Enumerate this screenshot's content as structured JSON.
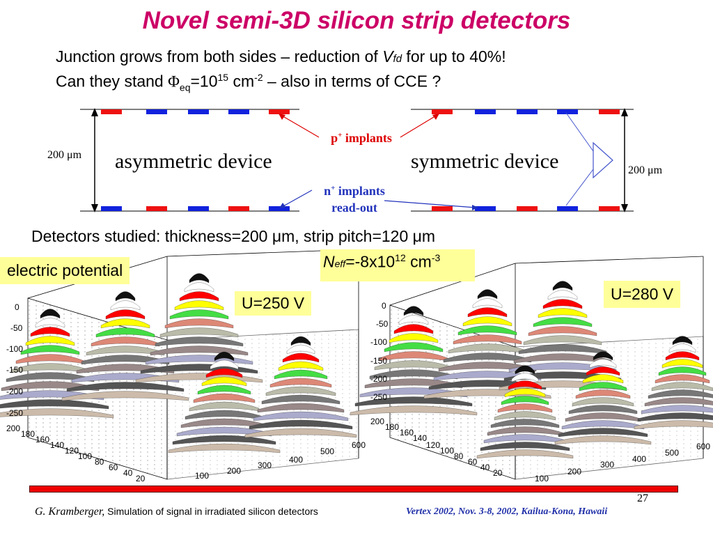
{
  "slide": {
    "title": "Novel semi-3D silicon strip detectors",
    "line1": {
      "text_a": "Junction grows from both sides – reduction of ",
      "v": "V",
      "v_sub": "fd",
      "text_b": " for up to 40%!"
    },
    "line2": {
      "text_a": "Can they stand ",
      "phi": "Φ",
      "phi_sub": "eq",
      "eq": "=10",
      "exp": "15",
      "unit": " cm",
      "unit_exp": "-2",
      "text_b": " – also in terms of CCE ?"
    },
    "detectors_line": "Detectors studied: thickness=200 μm, strip pitch=120 μm",
    "page_number": "27"
  },
  "schematic": {
    "thickness_left": "200 μm",
    "thickness_right": "200 μm",
    "asymmetric_label": "asymmetric device",
    "symmetric_label": "symmetric device",
    "p_implants": {
      "sup": "+",
      "letter": "p",
      "text": " implants",
      "color": "#dd0000"
    },
    "n_implants": {
      "sup": "+",
      "letter": "n",
      "text": " implants",
      "text2": "read-out",
      "color": "#2233bb"
    },
    "colors": {
      "p": "#ee1111",
      "n": "#1122dd"
    }
  },
  "plots": {
    "label_potential": "electric potential",
    "neff": {
      "n": "N",
      "sub": "eff",
      "val": "=-8x10",
      "exp": "12",
      "unit": " cm",
      "unit_exp": "-3"
    },
    "left": {
      "voltage": "U=250 V",
      "z_ticks": [
        "0",
        "-50",
        "-100",
        "-150",
        "-200",
        "-250"
      ],
      "y_ticks": [
        "200",
        "180",
        "160",
        "140",
        "120",
        "100",
        "80",
        "60",
        "40",
        "20"
      ],
      "x_ticks": [
        "100",
        "200",
        "300",
        "400",
        "500",
        "600"
      ]
    },
    "right": {
      "voltage": "U=280 V",
      "z_ticks": [
        "0",
        "-50",
        "-100",
        "-150",
        "-200",
        "-250"
      ],
      "y_ticks": [
        "200",
        "180",
        "160",
        "140",
        "120",
        "100",
        "80",
        "60",
        "40",
        "20"
      ],
      "x_ticks": [
        "100",
        "200",
        "300",
        "400",
        "500",
        "600"
      ]
    }
  },
  "footer": {
    "author": "G. Kramberger,",
    "talk": " Simulation of signal in irradiated silicon detectors",
    "conference": "Vertex 2002,  Nov.  3-8, 2002, Kailua-Kona, Hawaii",
    "bar_color": "#ee0000"
  }
}
